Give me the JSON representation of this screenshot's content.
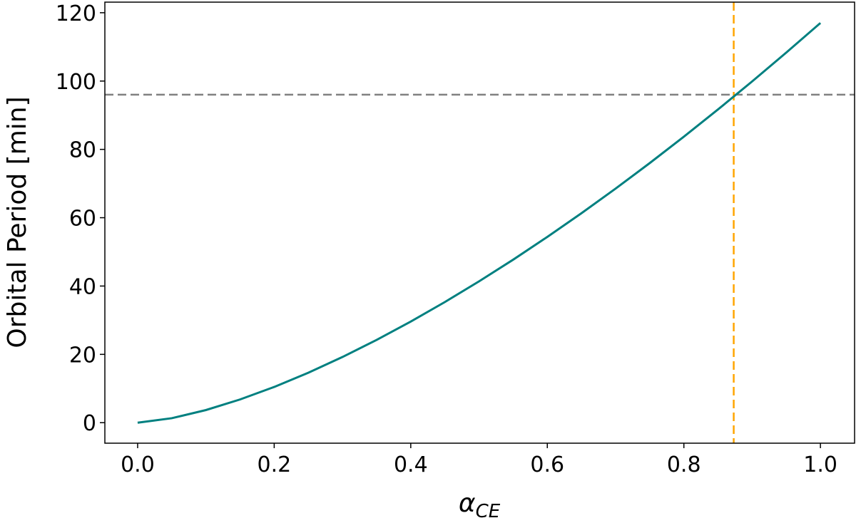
{
  "chart_data": {
    "type": "line",
    "ylabel": "Orbital Period [min]",
    "xlabel": "α",
    "xlabel_subscript": "CE",
    "x": [
      0,
      0.05,
      0.1,
      0.15,
      0.2,
      0.25,
      0.3,
      0.35,
      0.4,
      0.45,
      0.5,
      0.55,
      0.6,
      0.65,
      0.7,
      0.75,
      0.8,
      0.85,
      0.9,
      0.95,
      1.0
    ],
    "series": [
      {
        "color": "#008080",
        "values": [
          0,
          1.31,
          3.7,
          6.8,
          10.46,
          14.63,
          19.23,
          24.23,
          29.6,
          35.32,
          41.37,
          47.72,
          54.38,
          61.31,
          68.52,
          75.99,
          83.72,
          91.69,
          99.9,
          108.34,
          117.0
        ]
      }
    ],
    "hlines": [
      {
        "y": 96,
        "color": "#808080"
      }
    ],
    "vlines": [
      {
        "x": 0.873,
        "color": "#ffa500"
      }
    ],
    "xlim": [
      -0.048,
      1.05
    ],
    "ylim": [
      -6,
      123.1
    ],
    "xticks": [
      {
        "value": 0,
        "label": "0.0"
      },
      0.2,
      0.4,
      0.6,
      0.8,
      {
        "value": 1,
        "label": "1.0"
      }
    ],
    "yticks": [
      0,
      20,
      40,
      60,
      80,
      100,
      120
    ]
  }
}
